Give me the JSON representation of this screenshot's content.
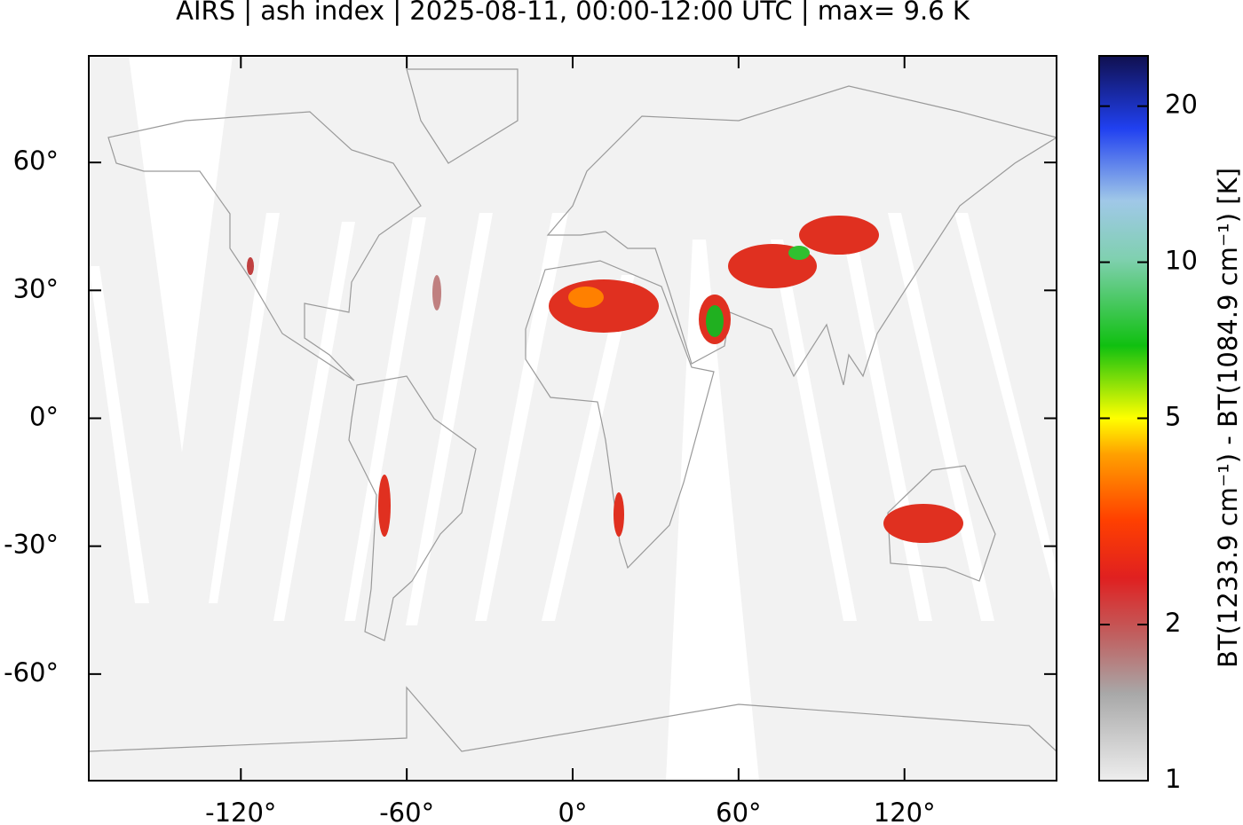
{
  "chart_data": {
    "type": "map",
    "title": "AIRS | ash index | 2025-08-11, 00:00-12:00 UTC | max= 9.6 K",
    "xlim": [
      -175,
      175
    ],
    "xticks": [
      {
        "value": -120,
        "label": "-120°"
      },
      {
        "value": -60,
        "label": "-60°"
      },
      {
        "value": 0,
        "label": "0°"
      },
      {
        "value": 60,
        "label": "60°"
      },
      {
        "value": 120,
        "label": "120°"
      }
    ],
    "ylim": [
      -85,
      85
    ],
    "yticks": [
      {
        "value": -60,
        "label": "-60°"
      },
      {
        "value": -30,
        "label": "-30°"
      },
      {
        "value": 0,
        "label": "0°"
      },
      {
        "value": 30,
        "label": "30°"
      },
      {
        "value": 60,
        "label": "60°"
      }
    ],
    "colorbar": {
      "label": "BT(1233.9 cm⁻¹) - BT(1084.9 cm⁻¹) [K]",
      "log_scale": true,
      "lim": [
        1,
        25
      ],
      "ticks": [
        1,
        2,
        5,
        10,
        20
      ]
    }
  }
}
